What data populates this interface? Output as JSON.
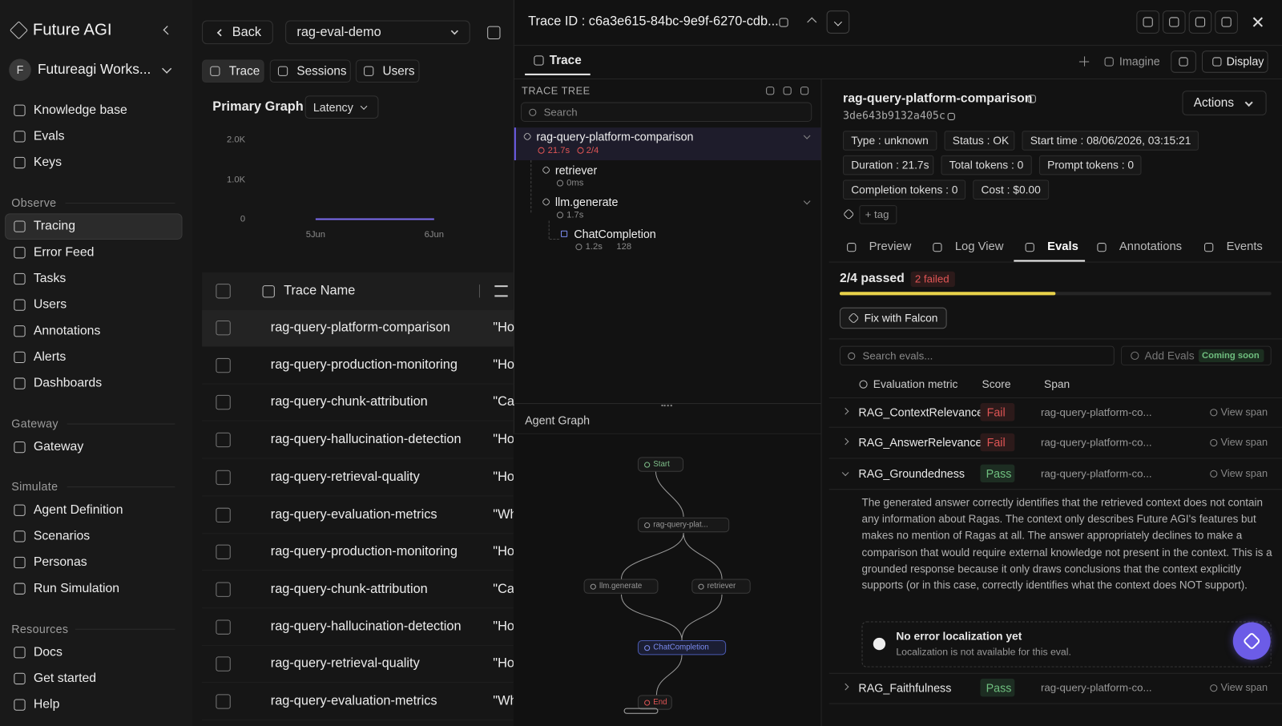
{
  "sidebar": {
    "brand": "Future AGI",
    "workspace_initial": "F",
    "workspace": "Futureagi Works...",
    "top_items": [
      "Knowledge base",
      "Evals",
      "Keys"
    ],
    "sections": [
      {
        "title": "Observe",
        "items": [
          {
            "label": "Tracing",
            "active": true
          },
          {
            "label": "Error Feed"
          },
          {
            "label": "Tasks"
          },
          {
            "label": "Users"
          },
          {
            "label": "Annotations"
          },
          {
            "label": "Alerts"
          },
          {
            "label": "Dashboards"
          }
        ]
      },
      {
        "title": "Gateway",
        "items": [
          {
            "label": "Gateway"
          }
        ]
      },
      {
        "title": "Simulate",
        "items": [
          {
            "label": "Agent Definition"
          },
          {
            "label": "Scenarios"
          },
          {
            "label": "Personas"
          },
          {
            "label": "Run Simulation"
          }
        ]
      },
      {
        "title": "Resources",
        "items": [
          {
            "label": "Docs"
          },
          {
            "label": "Get started"
          },
          {
            "label": "Help"
          }
        ]
      }
    ]
  },
  "header": {
    "back": "Back",
    "project": "rag-eval-demo",
    "tabs": [
      "Trace",
      "Sessions",
      "Users"
    ]
  },
  "primary_graph": {
    "title": "Primary Graph",
    "metric": "Latency",
    "ylim": [
      0,
      2000
    ],
    "yticks": [
      {
        "value": 2000,
        "label": "2.0K"
      },
      {
        "value": 1000,
        "label": "1.0K"
      },
      0
    ],
    "x": [
      "5Jun",
      "6Jun"
    ],
    "values": [
      0,
      0
    ],
    "color": "#7c6cf0"
  },
  "table": {
    "columns": [
      "Trace Name"
    ],
    "rows": [
      [
        "rag-query-platform-comparison",
        "\"Ho"
      ],
      [
        "rag-query-production-monitoring",
        "\"Ho"
      ],
      [
        "rag-query-chunk-attribution",
        "\"Ca"
      ],
      [
        "rag-query-hallucination-detection",
        "\"Ho"
      ],
      [
        "rag-query-retrieval-quality",
        "\"Ho"
      ],
      [
        "rag-query-evaluation-metrics",
        "\"Wh"
      ],
      [
        "rag-query-production-monitoring",
        "\"Ho"
      ],
      [
        "rag-query-chunk-attribution",
        "\"Ca"
      ],
      [
        "rag-query-hallucination-detection",
        "\"Ho"
      ],
      [
        "rag-query-retrieval-quality",
        "\"Ho"
      ],
      [
        "rag-query-evaluation-metrics",
        "\"Wh"
      ]
    ]
  },
  "trace_panel": {
    "trace_id": "Trace ID : c6a3e615-84bc-9e9f-6270-cdb...",
    "tab": "Trace",
    "imagine": "Imagine",
    "display": "Display",
    "tree": {
      "title": "TRACE TREE",
      "search": "Search",
      "nodes": [
        {
          "name": "rag-query-platform-comparison",
          "duration": "21.7s",
          "evals": "2/4"
        },
        {
          "name": "retriever",
          "duration": "0ms"
        },
        {
          "name": "llm.generate",
          "duration": "1.7s"
        },
        {
          "name": "ChatCompletion",
          "duration": "1.2s",
          "tokens": "128"
        }
      ]
    },
    "agent_graph": {
      "title": "Agent Graph",
      "nodes": [
        "Start",
        "rag-query-plat...",
        "llm.generate",
        "retriever",
        "ChatCompletion",
        "End"
      ]
    }
  },
  "detail": {
    "name": "rag-query-platform-comparison",
    "id": "3de643b9132a405c",
    "actions": "Actions",
    "chips": [
      [
        "Type : unknown",
        "Status : OK",
        "Start time : 08/06/2026, 03:15:21"
      ],
      [
        "Duration : 21.7s",
        "Total tokens : 0",
        "Prompt tokens : 0"
      ],
      [
        "Completion tokens : 0",
        "Cost : $0.00"
      ]
    ],
    "add_tag": "+ tag",
    "tabs": [
      "Preview",
      "Log View",
      "Evals",
      "Annotations",
      "Events"
    ],
    "summary": "2/4 passed",
    "failed": "2 failed",
    "fix": "Fix with Falcon",
    "search": "Search evals...",
    "add_evals": "Add Evals",
    "coming_soon": "Coming soon",
    "columns": [
      "Evaluation metric",
      "Score",
      "Span"
    ],
    "evals": [
      {
        "metric": "RAG_ContextRelevance",
        "score": "Fail",
        "span": "rag-query-platform-co...",
        "view": "View span"
      },
      {
        "metric": "RAG_AnswerRelevance",
        "score": "Fail",
        "span": "rag-query-platform-co...",
        "view": "View span"
      },
      {
        "metric": "RAG_Groundedness",
        "score": "Pass",
        "span": "rag-query-platform-co...",
        "view": "View span",
        "explanation": "The generated answer correctly identifies that the retrieved context does not contain any information about Ragas. The context only describes Future AGI's features but makes no mention of Ragas at all. The answer appropriately declines to make a comparison that would require external knowledge not present in the context. This is a grounded response because it only draws conclusions that the context explicitly supports (or in this case, correctly identifies what the context does NOT support).",
        "localization_title": "No error localization yet",
        "localization_text": "Localization is not available for this eval."
      },
      {
        "metric": "RAG_Faithfulness",
        "score": "Pass",
        "span": "rag-query-platform-co...",
        "view": "View span"
      }
    ]
  }
}
